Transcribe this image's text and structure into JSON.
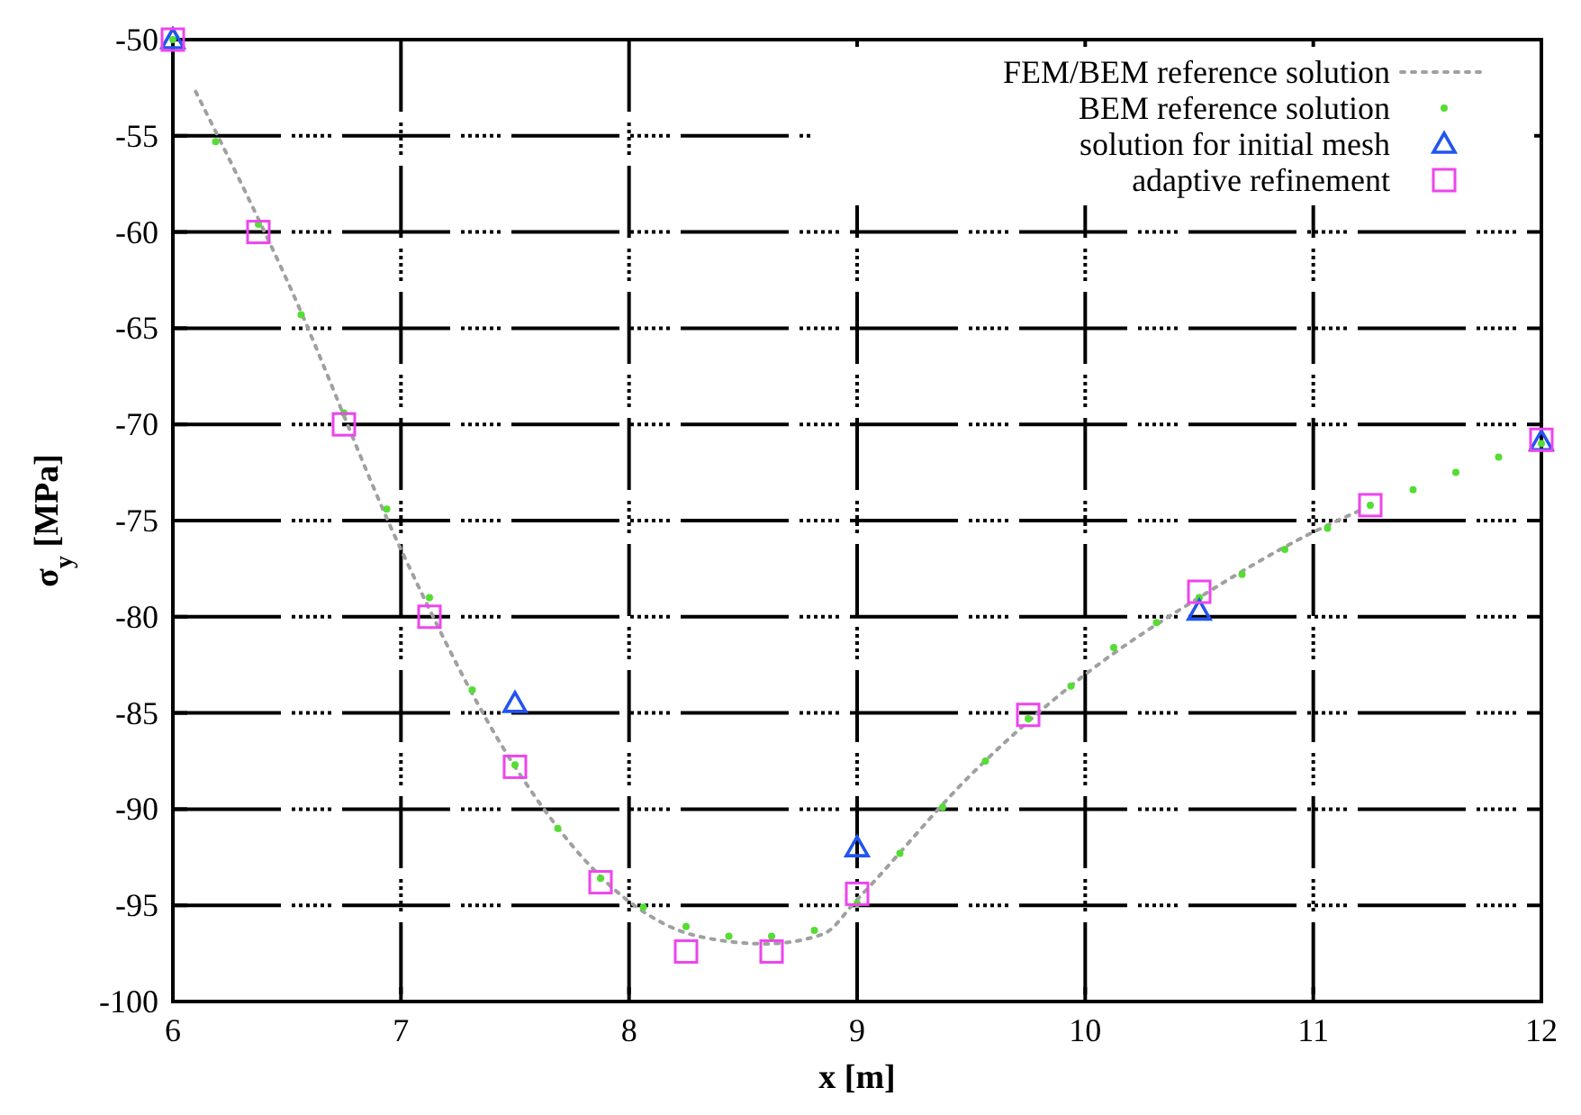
{
  "chart_data": {
    "type": "scatter",
    "xlabel": "x [m]",
    "ylabel": "σ$_{y}$ [MPa]",
    "xlim": [
      6,
      12
    ],
    "xticks": [
      6,
      7,
      8,
      9,
      10,
      11,
      12
    ],
    "ylim": [
      -100,
      -50
    ],
    "yticks": [
      -100,
      -95,
      -90,
      -85,
      -80,
      -75,
      -70,
      -65,
      -60,
      -55,
      -50
    ],
    "grid": true,
    "legend": "top right",
    "series": [
      {
        "name": "FEM/BEM reference solution",
        "type": "line",
        "line_style": "dotted",
        "marker": "none",
        "color": "#a0a0a0",
        "x": [
          6.1,
          6.5,
          7,
          7.5,
          8,
          8.3,
          8.6,
          8.85,
          9,
          9.5,
          10,
          10.5,
          11,
          11.2
        ],
        "values": [
          -52.7,
          -62.5,
          -76.5,
          -87.8,
          -94.8,
          -96.6,
          -97,
          -96.5,
          -94.7,
          -88.2,
          -83,
          -79,
          -75.6,
          -74.5
        ]
      },
      {
        "name": "BEM reference solution",
        "marker": "circle",
        "color": "#55dd33",
        "x": [
          6,
          6.1875,
          6.375,
          6.5625,
          6.75,
          6.9375,
          7.125,
          7.3125,
          7.5,
          7.6875,
          7.875,
          8.0625,
          8.25,
          8.4375,
          8.625,
          8.8125,
          9,
          9.1875,
          9.375,
          9.5625,
          9.75,
          9.9375,
          10.125,
          10.3125,
          10.5,
          10.6875,
          10.875,
          11.0625,
          11.25,
          11.4375,
          11.625,
          11.8125,
          12
        ],
        "values": [
          -50,
          -55.3,
          -59.6,
          -64.3,
          -69.4,
          -74.4,
          -79,
          -83.8,
          -87.7,
          -91,
          -93.6,
          -95.1,
          -96.1,
          -96.6,
          -96.6,
          -96.3,
          -94.9,
          -92.3,
          -89.9,
          -87.5,
          -85.3,
          -83.6,
          -81.6,
          -80.3,
          -79,
          -77.8,
          -76.5,
          -75.4,
          -74.2,
          -73.4,
          -72.5,
          -71.7,
          -71
        ]
      },
      {
        "name": "solution for initial mesh",
        "marker": "triangle",
        "color": "#2255ee",
        "x": [
          6,
          7.5,
          9,
          10.5,
          12
        ],
        "values": [
          -50,
          -84.5,
          -92,
          -79.7,
          -70.9
        ]
      },
      {
        "name": "adaptive refinement",
        "marker": "square",
        "color": "#ee44ee",
        "x": [
          6,
          6.375,
          6.75,
          7.125,
          7.5,
          7.875,
          8.25,
          8.625,
          9,
          9.75,
          10.5,
          11.25,
          12
        ],
        "values": [
          -50,
          -60,
          -70,
          -80,
          -87.8,
          -93.8,
          -97.4,
          -97.4,
          -94.4,
          -85.1,
          -78.7,
          -74.2,
          -70.8
        ]
      }
    ]
  }
}
